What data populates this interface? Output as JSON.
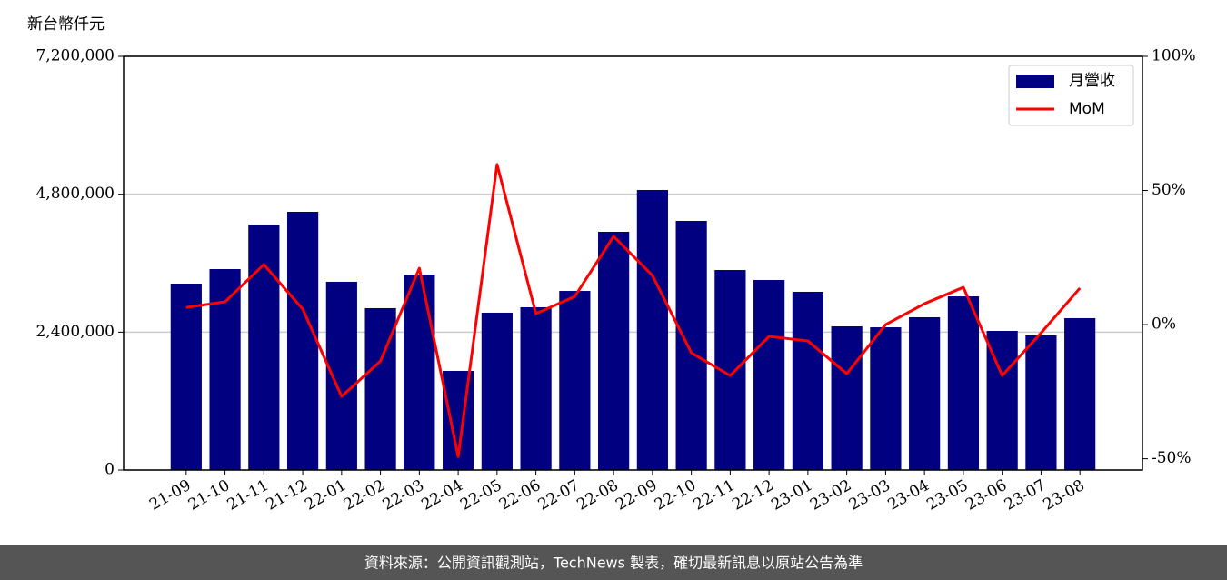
{
  "chart_data": {
    "type": "bar-line",
    "y_axis_title": "新台幣仟元",
    "categories": [
      "21-09",
      "21-10",
      "21-11",
      "21-12",
      "22-01",
      "22-02",
      "22-03",
      "22-04",
      "22-05",
      "22-06",
      "22-07",
      "22-08",
      "22-09",
      "22-10",
      "22-11",
      "22-12",
      "23-01",
      "23-02",
      "23-03",
      "23-04",
      "23-05",
      "23-06",
      "23-07",
      "23-08"
    ],
    "series": [
      {
        "name": "月營收",
        "color": "#000080",
        "type": "bar",
        "values": [
          3244000,
          3497000,
          4273000,
          4494000,
          3276000,
          2817000,
          3402000,
          1725000,
          2738000,
          2833000,
          3117000,
          4146000,
          4874000,
          4336000,
          3481000,
          3307000,
          3102000,
          2500000,
          2484000,
          2659000,
          3022000,
          2421000,
          2342000,
          2643000
        ]
      },
      {
        "name": "MoM",
        "color": "#ff0000",
        "type": "line",
        "axis": "y2",
        "values": [
          6.4,
          8.5,
          22.4,
          5.8,
          -26.8,
          -13.6,
          21.0,
          -49.2,
          59.7,
          4.1,
          10.5,
          32.9,
          18.3,
          -10.5,
          -19.0,
          -4.4,
          -6.1,
          -18.3,
          0,
          7.8,
          13.9,
          -19.0,
          -3.1,
          13.6
        ]
      }
    ],
    "ylim": [
      0,
      7200000
    ],
    "yticks": [
      0,
      {
        "value": 2400000,
        "label": "2,400,000"
      },
      {
        "value": 4800000,
        "label": "4,800,000"
      },
      {
        "value": 7200000,
        "label": "7,200,000"
      }
    ],
    "y2lim": [
      -54.2,
      100
    ],
    "y2ticks": [
      {
        "value": -50,
        "label": "-50%"
      },
      {
        "value": 0,
        "label": "0%"
      },
      {
        "value": 50,
        "label": "50%"
      },
      {
        "value": 100,
        "label": "100%"
      }
    ],
    "grid": true,
    "legend": "upper right"
  },
  "footer": "資料來源：公開資訊觀測站，TechNews 製表，確切最新訊息以原站公告為準"
}
